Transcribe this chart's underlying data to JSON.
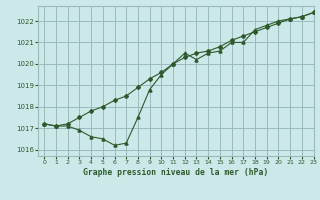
{
  "title": "Graphe pression niveau de la mer (hPa)",
  "background_color": "#cce8e8",
  "grid_color": "#99bbbb",
  "line_color": "#2d5a2d",
  "xlim": [
    -0.5,
    23
  ],
  "ylim": [
    1015.7,
    1022.7
  ],
  "xticks": [
    0,
    1,
    2,
    3,
    4,
    5,
    6,
    7,
    8,
    9,
    10,
    11,
    12,
    13,
    14,
    15,
    16,
    17,
    18,
    19,
    20,
    21,
    22,
    23
  ],
  "yticks": [
    1016,
    1017,
    1018,
    1019,
    1020,
    1021,
    1022
  ],
  "line1_x": [
    0,
    1,
    2,
    3,
    4,
    5,
    6,
    7,
    8,
    9,
    10,
    11,
    12,
    13,
    14,
    15,
    16,
    17,
    18,
    19,
    20,
    21,
    22,
    23
  ],
  "line1_y": [
    1017.2,
    1017.1,
    1017.2,
    1017.5,
    1017.8,
    1018.0,
    1018.3,
    1018.5,
    1018.9,
    1019.3,
    1019.6,
    1020.0,
    1020.3,
    1020.5,
    1020.6,
    1020.8,
    1021.1,
    1021.3,
    1021.5,
    1021.7,
    1021.9,
    1022.1,
    1022.2,
    1022.4
  ],
  "line2_x": [
    0,
    1,
    2,
    3,
    4,
    5,
    6,
    7,
    8,
    9,
    10,
    11,
    12,
    13,
    14,
    15,
    16,
    17,
    18,
    19,
    20,
    21,
    22,
    23
  ],
  "line2_y": [
    1017.2,
    1017.1,
    1017.1,
    1016.9,
    1016.6,
    1016.5,
    1016.2,
    1016.3,
    1017.5,
    1018.8,
    1019.5,
    1020.0,
    1020.5,
    1020.2,
    1020.5,
    1020.6,
    1021.0,
    1021.0,
    1021.6,
    1021.8,
    1022.0,
    1022.1,
    1022.2,
    1022.4
  ]
}
